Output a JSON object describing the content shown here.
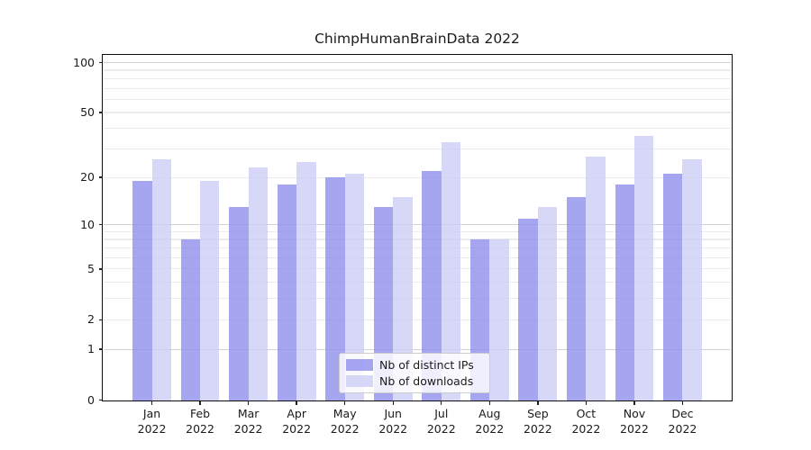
{
  "title": "ChimpHumanBrainData 2022",
  "chart_data": {
    "type": "bar",
    "title": "ChimpHumanBrainData 2022",
    "x_months": [
      "Jan",
      "Feb",
      "Mar",
      "Apr",
      "May",
      "Jun",
      "Jul",
      "Aug",
      "Sep",
      "Oct",
      "Nov",
      "Dec"
    ],
    "x_year": "2022",
    "series": [
      {
        "name": "Nb of distinct IPs",
        "color": "#8f8fec",
        "opacity": 0.8,
        "values": [
          19,
          8,
          13,
          18,
          20,
          13,
          22,
          8,
          11,
          15,
          18,
          21
        ]
      },
      {
        "name": "Nb of downloads",
        "color": "#cdcdf5",
        "opacity": 0.8,
        "values": [
          26,
          19,
          23,
          25,
          21,
          15,
          33,
          8,
          13,
          27,
          36,
          26
        ]
      }
    ],
    "y_scale": "log1p",
    "y_tick_values": [
      0,
      1,
      2,
      5,
      10,
      20,
      50,
      100
    ],
    "y_tick_labels": [
      "0",
      "1",
      "2",
      "5",
      "10",
      "20",
      "50",
      "100"
    ],
    "y_major_gridlines": [
      1,
      10,
      100
    ],
    "y_minor_gridlines": [
      2,
      3,
      4,
      5,
      6,
      7,
      8,
      9,
      20,
      30,
      40,
      50,
      60,
      70,
      80,
      90
    ],
    "ylim": [
      0,
      111
    ],
    "grid": true,
    "legend_position": "lower center",
    "colors": {
      "major_grid": "#d2d2d2",
      "minor_grid": "#ebebeb",
      "spine": "#0d0d0d",
      "text": "#1a1a1a"
    }
  }
}
